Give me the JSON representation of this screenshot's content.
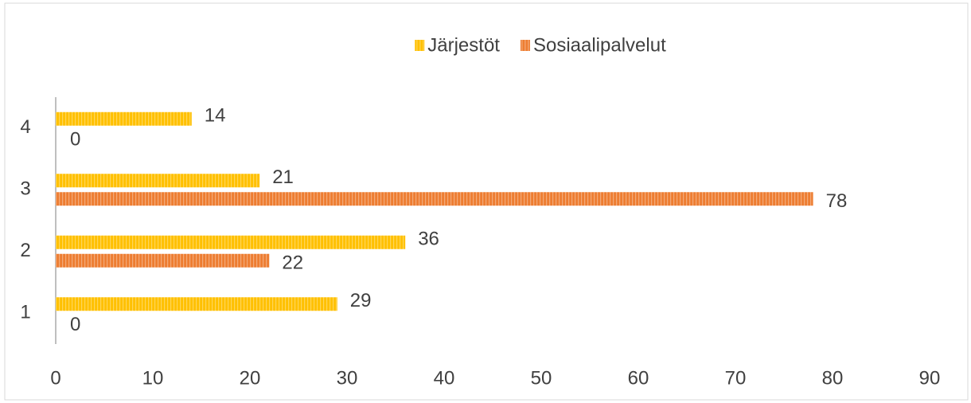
{
  "chart_data": {
    "type": "barh",
    "categories": [
      "1",
      "2",
      "3",
      "4"
    ],
    "series": [
      {
        "name": "Järjestöt",
        "color": "#FFC000",
        "values": [
          29,
          36,
          21,
          14
        ]
      },
      {
        "name": "Sosiaalipalvelut",
        "color": "#ED7D31",
        "values": [
          0,
          22,
          78,
          0
        ]
      }
    ],
    "xlim": [
      0,
      90
    ],
    "xticks": [
      0,
      10,
      20,
      30,
      40,
      50,
      60,
      70,
      80,
      90
    ],
    "legend": "top"
  }
}
